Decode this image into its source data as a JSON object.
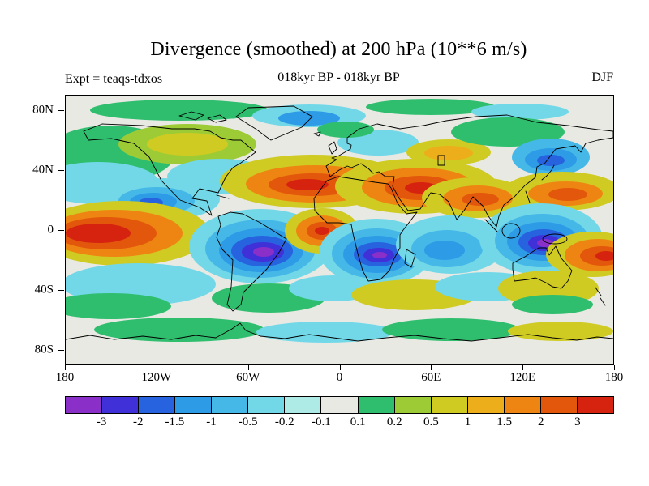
{
  "header": {
    "title": "Divergence (smoothed) at 200 hPa (10**6 m/s)",
    "experiment_label": "Expt = teaqs-tdxos",
    "period_label": "018kyr BP - 018kyr BP",
    "season_label": "DJF"
  },
  "map": {
    "background_color": "#E9E9E4",
    "coastline_color": "#000000",
    "lat_ticks": [
      {
        "label": "80N",
        "lat": 80
      },
      {
        "label": "40N",
        "lat": 40
      },
      {
        "label": "0",
        "lat": 0
      },
      {
        "label": "40S",
        "lat": -40
      },
      {
        "label": "80S",
        "lat": -80
      }
    ],
    "lon_ticks": [
      {
        "label": "180",
        "lon": -180
      },
      {
        "label": "120W",
        "lon": -120
      },
      {
        "label": "60W",
        "lon": -60
      },
      {
        "label": "0",
        "lon": 0
      },
      {
        "label": "60E",
        "lon": 60
      },
      {
        "label": "120E",
        "lon": 120
      },
      {
        "label": "180",
        "lon": 180
      }
    ]
  },
  "colorbar": {
    "levels": [
      "-3",
      "-2",
      "-1.5",
      "-1",
      "-0.5",
      "-0.2",
      "-0.1",
      "0.1",
      "0.2",
      "0.5",
      "1",
      "1.5",
      "2",
      "3"
    ],
    "colors": [
      "#8A2FC8",
      "#4030D8",
      "#2762DF",
      "#2E9BE6",
      "#45B8E8",
      "#72D8E8",
      "#AEEAE6",
      "#E9E9E4",
      "#2FBE6E",
      "#9CCB35",
      "#CFCB22",
      "#EDAE1C",
      "#EE8512",
      "#E2570B",
      "#D62310"
    ]
  },
  "chart_data": {
    "type": "heatmap",
    "subtype": "filled-contour-world-map",
    "title": "Divergence (smoothed) at 200 hPa (10**6 m/s)",
    "subtitle": "018kyr BP - 018kyr BP",
    "experiment": "Expt = teaqs-tdxos",
    "season": "DJF",
    "variable": "Divergence (smoothed) at 200 hPa",
    "units": "10**6 m/s",
    "projection": "equirectangular",
    "lon_range": [
      -180,
      180
    ],
    "lat_range": [
      -90,
      90
    ],
    "x_tick_labels": [
      "180",
      "120W",
      "60W",
      "0",
      "60E",
      "120E",
      "180"
    ],
    "y_tick_labels": [
      "80N",
      "40N",
      "0",
      "40S",
      "80S"
    ],
    "contour_levels": [
      -3,
      -2,
      -1.5,
      -1,
      -0.5,
      -0.2,
      -0.1,
      0.1,
      0.2,
      0.5,
      1,
      1.5,
      2,
      3
    ],
    "palette_hex": [
      "#8A2FC8",
      "#4030D8",
      "#2762DF",
      "#2E9BE6",
      "#45B8E8",
      "#72D8E8",
      "#AEEAE6",
      "#E9E9E4",
      "#2FBE6E",
      "#9CCB35",
      "#CFCB22",
      "#EDAE1C",
      "#EE8512",
      "#E2570B",
      "#D62310"
    ],
    "near_zero_band": "values between -0.1 and 0.1 shown light grey",
    "legend_position": "bottom horizontal colorbar",
    "approximate_centers": [
      {
        "region": "eastern equatorial Pacific (left edge of map)",
        "lon": -165,
        "lat": 0,
        "value": ">3"
      },
      {
        "region": "Caribbean / eastern North Pacific",
        "lon": -120,
        "lat": 20,
        "value": "-1 to -2"
      },
      {
        "region": "subtropical North Atlantic",
        "lon": -20,
        "lat": 30,
        "value": ">3"
      },
      {
        "region": "North Africa / Middle East",
        "lon": 45,
        "lat": 28,
        "value": ">3"
      },
      {
        "region": "Arabian Sea / India",
        "lon": 85,
        "lat": 22,
        "value": "2 to 3"
      },
      {
        "region": "equatorial Atlantic",
        "lon": -12,
        "lat": 0,
        "value": "2 to 3"
      },
      {
        "region": "northern South America (Amazon)",
        "lon": -50,
        "lat": -13,
        "value": "<-3"
      },
      {
        "region": "central equatorial Africa",
        "lon": 25,
        "lat": -15,
        "value": "<-3"
      },
      {
        "region": "Maritime Continent (Borneo region)",
        "lon": 134,
        "lat": -6,
        "value": "<-3"
      },
      {
        "region": "far western Pacific south of equator (right edge)",
        "lon": 172,
        "lat": -16,
        "value": ">3"
      },
      {
        "region": "Northeast Asia",
        "lon": 139,
        "lat": 48,
        "value": "-1 to -2"
      },
      {
        "region": "southern mid-latitudes",
        "lon": 0,
        "lat": -55,
        "value": "alternating 0.2 to 1 (green/olive) and -0.5 (cyan) bands"
      }
    ]
  }
}
